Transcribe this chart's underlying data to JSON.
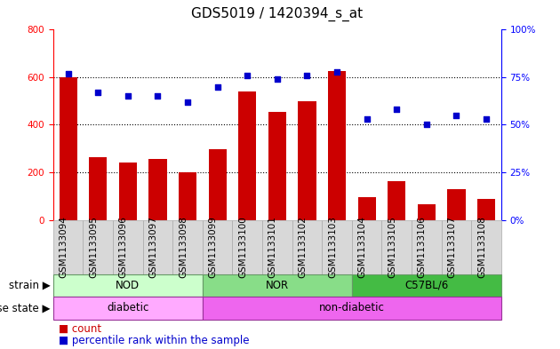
{
  "title": "GDS5019 / 1420394_s_at",
  "samples": [
    "GSM1133094",
    "GSM1133095",
    "GSM1133096",
    "GSM1133097",
    "GSM1133098",
    "GSM1133099",
    "GSM1133100",
    "GSM1133101",
    "GSM1133102",
    "GSM1133103",
    "GSM1133104",
    "GSM1133105",
    "GSM1133106",
    "GSM1133107",
    "GSM1133108"
  ],
  "counts": [
    600,
    265,
    243,
    258,
    202,
    298,
    540,
    455,
    498,
    625,
    95,
    163,
    65,
    130,
    88
  ],
  "percentiles": [
    77,
    67,
    65,
    65,
    62,
    70,
    76,
    74,
    76,
    78,
    53,
    58,
    50,
    55,
    53
  ],
  "bar_color": "#cc0000",
  "dot_color": "#0000cc",
  "left_ylim": [
    0,
    800
  ],
  "left_yticks": [
    0,
    200,
    400,
    600,
    800
  ],
  "right_ylim": [
    0,
    100
  ],
  "right_yticks": [
    0,
    25,
    50,
    75,
    100
  ],
  "right_yticklabels": [
    "0",
    "25",
    "50",
    "75",
    "100"
  ],
  "strain_groups": [
    {
      "label": "NOD",
      "start": 0,
      "end": 5,
      "facecolor": "#ccffcc",
      "edgecolor": "#669966"
    },
    {
      "label": "NOR",
      "start": 5,
      "end": 10,
      "facecolor": "#88dd88",
      "edgecolor": "#669966"
    },
    {
      "label": "C57BL/6",
      "start": 10,
      "end": 15,
      "facecolor": "#44bb44",
      "edgecolor": "#669966"
    }
  ],
  "disease_groups": [
    {
      "label": "diabetic",
      "start": 0,
      "end": 5,
      "facecolor": "#ffaaff",
      "edgecolor": "#993399"
    },
    {
      "label": "non-diabetic",
      "start": 5,
      "end": 15,
      "facecolor": "#ee66ee",
      "edgecolor": "#993399"
    }
  ],
  "col_bg_color": "#d8d8d8",
  "col_edge_color": "#aaaaaa",
  "legend_count_label": "count",
  "legend_percentile_label": "percentile rank within the sample",
  "strain_row_label": "strain",
  "disease_row_label": "disease state",
  "plot_bg_color": "#ffffff",
  "grid_line_color": "#000000",
  "title_fontsize": 11,
  "tick_fontsize": 7.5,
  "label_fontsize": 8.5,
  "legend_fontsize": 8.5,
  "band_fontsize": 8.5
}
